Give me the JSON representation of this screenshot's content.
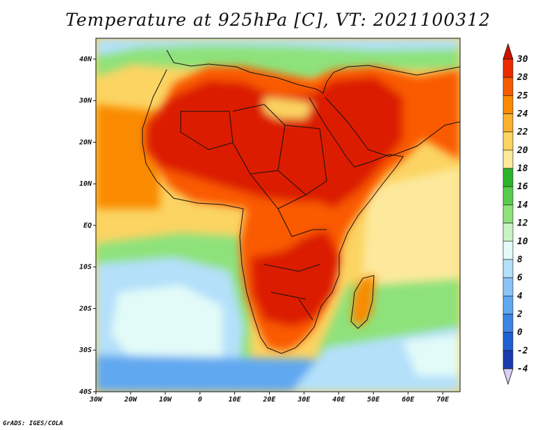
{
  "title": "Temperature at 925hPa [C], VT: 2021100312",
  "credit": "GrADS: IGES/COLA",
  "map": {
    "lon_range": [
      -30,
      75
    ],
    "lat_range": [
      -40,
      45
    ],
    "lat_ticks": [
      {
        "value": 40,
        "label": "40N"
      },
      {
        "value": 30,
        "label": "30N"
      },
      {
        "value": 20,
        "label": "20N"
      },
      {
        "value": 10,
        "label": "10N"
      },
      {
        "value": 0,
        "label": "EQ"
      },
      {
        "value": -10,
        "label": "10S"
      },
      {
        "value": -20,
        "label": "20S"
      },
      {
        "value": -30,
        "label": "30S"
      },
      {
        "value": -40,
        "label": "40S"
      }
    ],
    "lon_ticks": [
      {
        "value": -30,
        "label": "30W"
      },
      {
        "value": -20,
        "label": "20W"
      },
      {
        "value": -10,
        "label": "10W"
      },
      {
        "value": 0,
        "label": "0"
      },
      {
        "value": 10,
        "label": "10E"
      },
      {
        "value": 20,
        "label": "20E"
      },
      {
        "value": 30,
        "label": "30E"
      },
      {
        "value": 40,
        "label": "40E"
      },
      {
        "value": 50,
        "label": "50E"
      },
      {
        "value": 60,
        "label": "60E"
      },
      {
        "value": 70,
        "label": "70E"
      }
    ]
  },
  "colorbar": {
    "labels": [
      "30",
      "28",
      "25",
      "24",
      "22",
      "20",
      "18",
      "16",
      "14",
      "12",
      "10",
      "8",
      "6",
      "4",
      "2",
      "0",
      "-2",
      "-4"
    ],
    "colors": [
      "#ee2a00",
      "#f55a00",
      "#fa8a00",
      "#fbb030",
      "#fbd462",
      "#fde99c",
      "#2cb52c",
      "#58cc4c",
      "#8ee27a",
      "#c6f4c4",
      "#e2fbf8",
      "#b4e0fa",
      "#8ac4f6",
      "#60a8f0",
      "#3c84e6",
      "#1e60d2",
      "#1a3cb0",
      "#0c1670"
    ],
    "top_color": "#cc1400",
    "bottom_color": "#d8d0f6"
  },
  "colors": {
    "land_hot": "#dc1e00",
    "land_warm": "#fa5a00",
    "ocean_warm": "#fbd462",
    "ocean_cool": "#8ee27a",
    "ocean_cold": "#b4e0fa",
    "border": "#111111"
  }
}
